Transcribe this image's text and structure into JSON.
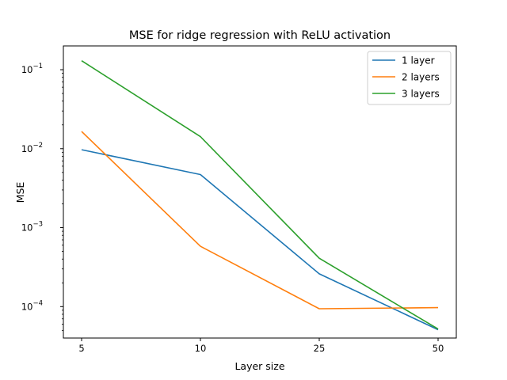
{
  "chart_data": {
    "type": "line",
    "title": "MSE for ridge regression with ReLU activation",
    "xlabel": "Layer size",
    "ylabel": "MSE",
    "categories": [
      "5",
      "10",
      "25",
      "50"
    ],
    "yscale": "log",
    "ylim": [
      4e-05,
      0.2
    ],
    "yticks": [
      {
        "value": 0.0001,
        "base": "10",
        "exp": "−4"
      },
      {
        "value": 0.001,
        "base": "10",
        "exp": "−3"
      },
      {
        "value": 0.01,
        "base": "10",
        "exp": "−2"
      },
      {
        "value": 0.1,
        "base": "10",
        "exp": "−1"
      }
    ],
    "grid": false,
    "legend_position": "top-right",
    "series": [
      {
        "name": "1 layer",
        "color": "#1f77b4",
        "values": [
          0.0097,
          0.0047,
          0.00026,
          5.1e-05
        ]
      },
      {
        "name": "2 layers",
        "color": "#ff7f0e",
        "values": [
          0.0165,
          0.00058,
          9.4e-05,
          9.7e-05
        ]
      },
      {
        "name": "3 layers",
        "color": "#2ca02c",
        "values": [
          0.13,
          0.0142,
          0.00041,
          5.2e-05
        ]
      }
    ]
  }
}
